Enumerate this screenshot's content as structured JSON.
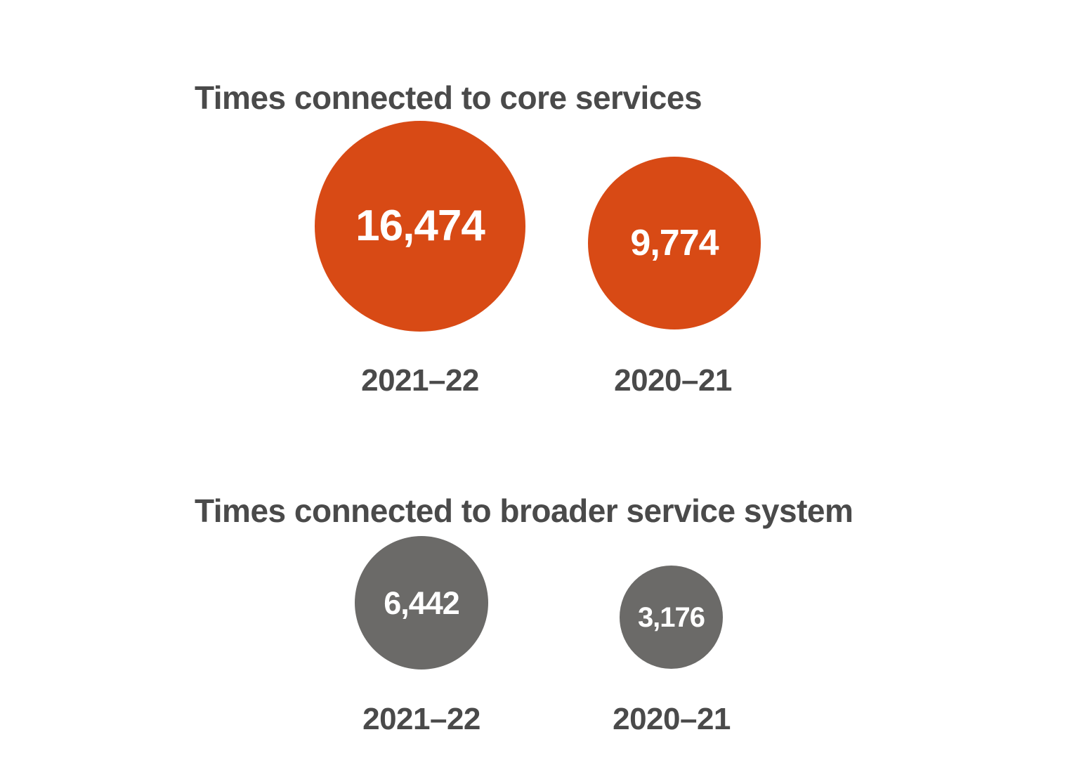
{
  "page": {
    "background": "#FFFFFF",
    "text_color": "#4A4A4A"
  },
  "chart_data": [
    {
      "type": "bubble",
      "title": "Times connected to core services",
      "categories": [
        "2021–22",
        "2020–21"
      ],
      "values": [
        16474,
        9774
      ],
      "value_labels": [
        "16,474",
        "9,774"
      ],
      "bubble_color": "#D84A15",
      "value_text_color": "#FFFFFF",
      "category_label_color": "#4A4A4A",
      "layout": "circles sized proportionally to value, bottom-aligned, category label beneath each circle",
      "legend": "none"
    },
    {
      "type": "bubble",
      "title": "Times connected to broader service system",
      "categories": [
        "2021–22",
        "2020–21"
      ],
      "values": [
        6442,
        3176
      ],
      "value_labels": [
        "6,442",
        "3,176"
      ],
      "bubble_color": "#6B6A68",
      "value_text_color": "#FFFFFF",
      "category_label_color": "#4A4A4A",
      "layout": "circles sized proportionally to value, bottom-aligned, category label beneath each circle",
      "legend": "none"
    }
  ]
}
